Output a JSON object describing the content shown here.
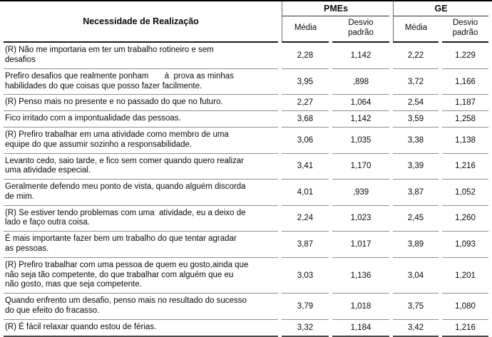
{
  "table": {
    "stub_header": "Necessidade de Realização",
    "groups": [
      {
        "label": "PMEs"
      },
      {
        "label": "GE"
      }
    ],
    "subheaders": [
      "Média",
      "Desvio\npadrão",
      "Média",
      "Desvio\npadrão"
    ],
    "rows": [
      {
        "item": "(R) Não me importaria em ter um trabalho rotineiro e sem\ndesafios",
        "values": [
          "2,28",
          "1,142",
          "2,22",
          "1,229"
        ]
      },
      {
        "item": "Prefiro desafios que realmente ponham       à  prova as minhas\nhabilidades do que coisas que posso fazer facilmente.",
        "values": [
          "3,95",
          ",898",
          "3,72",
          "1,166"
        ]
      },
      {
        "item": "(R) Penso mais no presente e no passado do que no futuro.",
        "values": [
          "2,27",
          "1,064",
          "2,54",
          "1,187"
        ]
      },
      {
        "item": "Fico irritado com a impontualidade das pessoas.",
        "values": [
          "3,68",
          "1,142",
          "3,59",
          "1,258"
        ]
      },
      {
        "item": "(R) Prefiro trabalhar em uma atividade como membro de uma\nequipe do que assumir sozinho a responsabilidade.",
        "values": [
          "3,06",
          "1,035",
          "3,38",
          "1,138"
        ]
      },
      {
        "item": "Levanto cedo, saio tarde, e fico sem comer quando quero realizar\numa atividade especial.",
        "values": [
          "3,41",
          "1,170",
          "3,39",
          "1,216"
        ]
      },
      {
        "item": "Geralmente defendo meu ponto de vista, quando alguém discorda\nde mim.",
        "values": [
          "4,01",
          ",939",
          "3,87",
          "1,052"
        ]
      },
      {
        "item": "(R) Se estiver tendo problemas com uma  atividade, eu a deixo de\nlado e faço outra coisa.",
        "values": [
          "2,24",
          "1,023",
          "2,45",
          "1,260"
        ]
      },
      {
        "item": "É mais importante fazer bem um trabalho do que tentar agradar\nas pessoas.",
        "values": [
          "3,87",
          "1,017",
          "3,89",
          "1,093"
        ]
      },
      {
        "item": "(R) Prefiro trabalhar com uma pessoa de quem eu gosto,ainda que\nnão seja tão competente, do que trabalhar com alguém que eu\nnão gosto, mas que seja competente.",
        "values": [
          "3,03",
          "1,136",
          "3,04",
          "1,201"
        ]
      },
      {
        "item": "Quando enfrento um desafio, penso mais no resultado do sucesso\ndo que efeito do fracasso.",
        "values": [
          "3,79",
          "1,018",
          "3,75",
          "1,080"
        ]
      },
      {
        "item": "(R) É fácil relaxar quando estou de férias.",
        "values": [
          "3,32",
          "1,184",
          "3,42",
          "1,216"
        ]
      }
    ]
  },
  "colors": {
    "border_dark": "#000000",
    "border_gray": "#8f8f8f",
    "text": "#0a0a0a"
  }
}
